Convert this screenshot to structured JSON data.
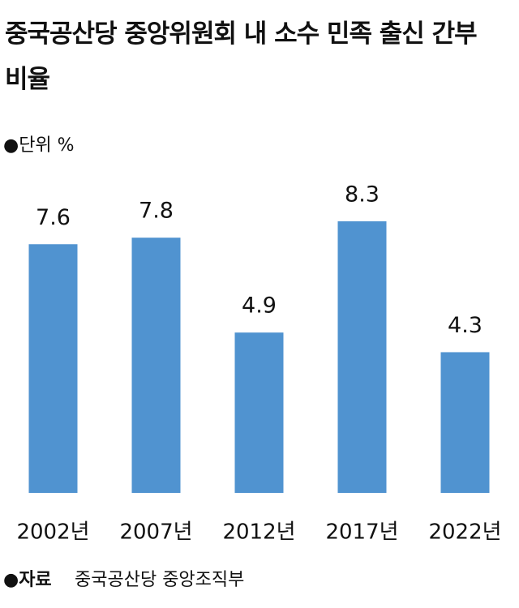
{
  "chart_data": {
    "type": "bar",
    "title": "중국공산당 중앙위원회 내 소수 민족 출신 간부 비율",
    "unit": "●단위 %",
    "categories": [
      "2002년",
      "2007년",
      "2012년",
      "2017년",
      "2022년"
    ],
    "values": [
      7.6,
      7.8,
      4.9,
      8.3,
      4.3
    ],
    "color": "#5093d0",
    "source_label": "●자료",
    "source": "중국공산당 중앙조직부"
  }
}
